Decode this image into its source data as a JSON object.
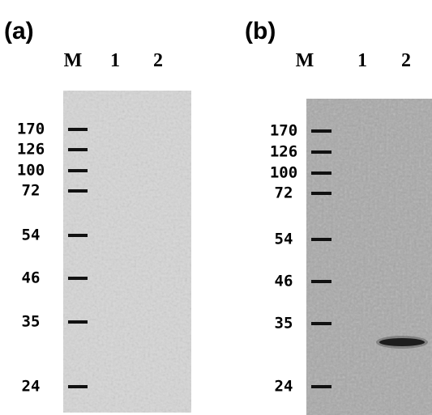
{
  "panels": [
    {
      "label": "(a)",
      "lanes": [
        "M",
        "1",
        "2"
      ],
      "markers": [
        170,
        126,
        100,
        72,
        54,
        46,
        35,
        24
      ]
    },
    {
      "label": "(b)",
      "lanes": [
        "M",
        "1",
        "2"
      ],
      "markers": [
        170,
        126,
        100,
        72,
        54,
        46,
        35,
        24
      ]
    }
  ]
}
